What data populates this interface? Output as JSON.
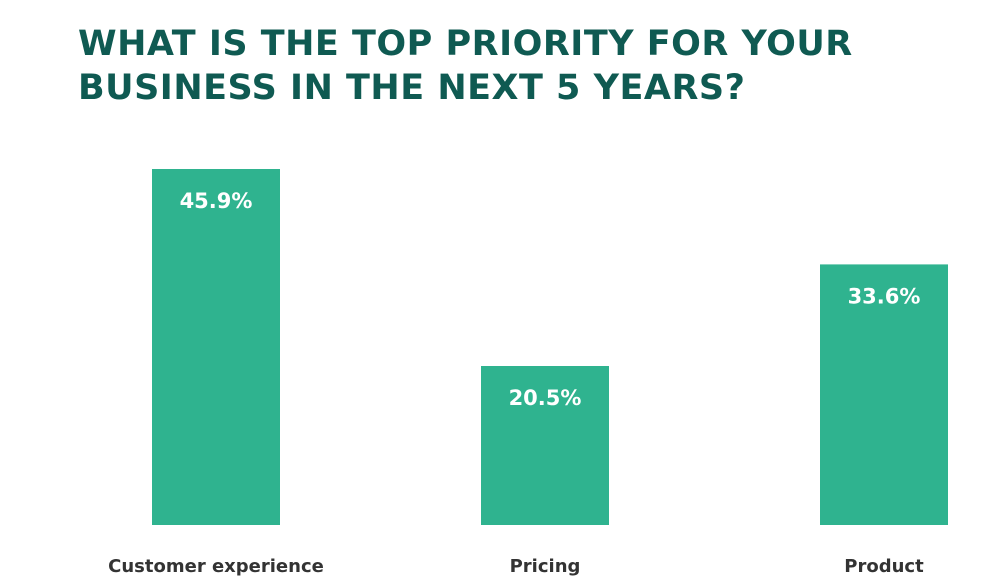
{
  "title_line1": "WHAT IS THE TOP PRIORITY FOR YOUR",
  "title_line2": "BUSINESS IN THE NEXT 5 YEARS?",
  "colors": {
    "bar": "#2fb38f",
    "title": "#0f5a52",
    "label_text": "#333333",
    "value_text": "#ffffff"
  },
  "chart_data": {
    "type": "bar",
    "title": "WHAT IS THE TOP PRIORITY FOR YOUR BUSINESS IN THE NEXT 5 YEARS?",
    "categories": [
      "Customer experience",
      "Pricing",
      "Product"
    ],
    "values": [
      45.9,
      20.5,
      33.6
    ],
    "value_labels": [
      "45.9%",
      "20.5%",
      "33.6%"
    ],
    "xlabel": "",
    "ylabel": "",
    "ylim": [
      0,
      50
    ],
    "grid": false,
    "legend": "none"
  }
}
